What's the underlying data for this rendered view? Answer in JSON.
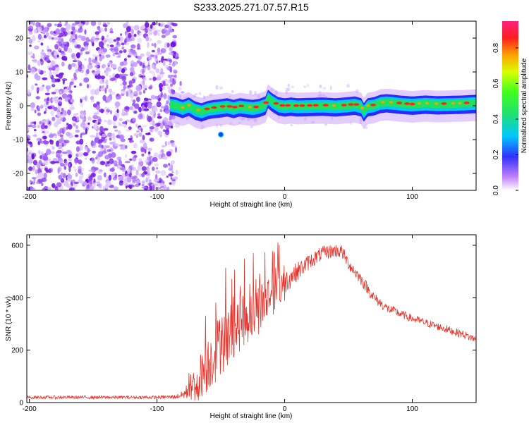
{
  "title": "S233.2025.271.07.57.R15",
  "colorbar": {
    "label": "Normalized spectral amplitude",
    "ticks": [
      "0.0",
      "0.2",
      "0.4",
      "0.6",
      "0.8"
    ],
    "tick_values": [
      0.0,
      0.2,
      0.4,
      0.6,
      0.8
    ],
    "range": [
      0,
      0.95
    ]
  },
  "chart_data": [
    {
      "type": "heatmap",
      "title": "S233.2025.271.07.57.R15",
      "xlabel": "Height of straight line (km)",
      "ylabel": "Frequency (Hz)",
      "xlim": [
        -202,
        150
      ],
      "ylim": [
        -25,
        25
      ],
      "xticks": [
        -200,
        -100,
        0,
        100
      ],
      "xtick_labels": [
        "-200",
        "-100",
        "0",
        "100"
      ],
      "yticks": [
        -20,
        -10,
        0,
        10,
        20
      ],
      "ytick_labels": [
        "-20",
        "-10",
        "0",
        "10",
        "20"
      ],
      "noise_region_x": [
        -202,
        -85
      ],
      "stray_point": {
        "x": -50,
        "y": -8.5
      },
      "ridge": {
        "x": [
          -90,
          -85,
          -80,
          -75,
          -70,
          -65,
          -60,
          -55,
          -50,
          -45,
          -40,
          -35,
          -30,
          -25,
          -20,
          -15,
          -13,
          -10,
          -5,
          0,
          5,
          10,
          20,
          30,
          40,
          50,
          55,
          60,
          62,
          65,
          70,
          75,
          80,
          90,
          100,
          110,
          120,
          130,
          140,
          150
        ],
        "y": [
          0.5,
          0.2,
          -0.5,
          0.2,
          -1.0,
          -1.5,
          -0.8,
          -0.5,
          -0.3,
          0.0,
          -0.5,
          0.0,
          -0.3,
          -0.5,
          -0.2,
          0.5,
          2.5,
          1.5,
          0.3,
          0.0,
          0.2,
          0.0,
          0.1,
          0.2,
          0.0,
          0.3,
          0.5,
          0.0,
          -1.5,
          0.0,
          0.3,
          1.0,
          1.2,
          0.8,
          0.5,
          0.8,
          0.6,
          0.7,
          0.8,
          1.0
        ]
      }
    },
    {
      "type": "line",
      "xlabel": "Height of straight line (km)",
      "ylabel": "SNR (10 * v/v)",
      "xlim": [
        -202,
        150
      ],
      "ylim": [
        0,
        640
      ],
      "xticks": [
        -200,
        -100,
        0,
        100
      ],
      "xtick_labels": [
        "-200",
        "-100",
        "0",
        "100"
      ],
      "yticks": [
        0,
        200,
        400,
        600
      ],
      "ytick_labels": [
        "0",
        "200",
        "400",
        "600"
      ],
      "series": [
        {
          "name": "SNR",
          "color": "#e8322a",
          "envelope_x": [
            -202,
            -150,
            -100,
            -85,
            -80,
            -75,
            -70,
            -65,
            -60,
            -55,
            -50,
            -45,
            -40,
            -30,
            -20,
            -10,
            0,
            10,
            20,
            30,
            40,
            45,
            50,
            60,
            70,
            80,
            100,
            120,
            140,
            150
          ],
          "envelope_y": [
            20,
            20,
            20,
            22,
            30,
            45,
            70,
            110,
            150,
            190,
            220,
            250,
            280,
            320,
            360,
            420,
            460,
            500,
            540,
            570,
            580,
            575,
            530,
            470,
            400,
            360,
            320,
            290,
            260,
            240
          ],
          "spread": [
            6,
            6,
            6,
            8,
            15,
            40,
            80,
            90,
            110,
            120,
            120,
            120,
            110,
            100,
            100,
            90,
            80,
            60,
            50,
            45,
            45,
            45,
            40,
            40,
            35,
            30,
            25,
            25,
            25,
            25
          ]
        }
      ]
    }
  ]
}
